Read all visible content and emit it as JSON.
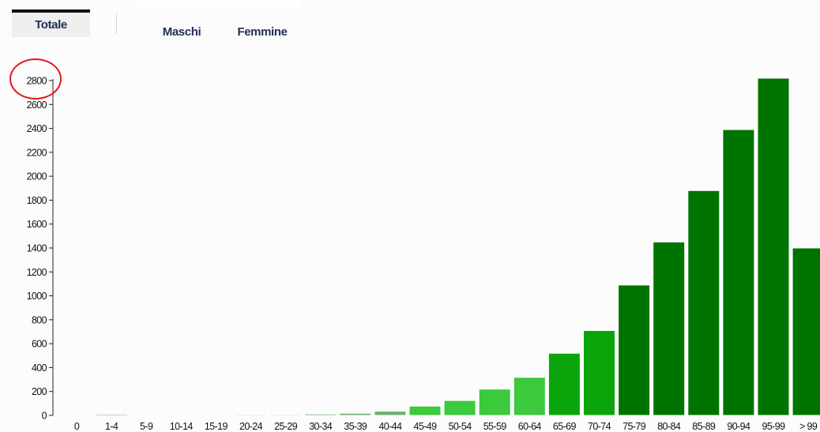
{
  "tabs": {
    "totale": "Totale",
    "maschi": "Maschi",
    "femmine": "Femmine"
  },
  "colors": {
    "light_green": "#3cc93c",
    "mid_green": "#0aa50a",
    "dark_green": "#007400",
    "tiny_bar": "#6fae6f",
    "annotation": "#e0191e"
  },
  "chart_data": {
    "type": "bar",
    "categories": [
      "0",
      "1-4",
      "5-9",
      "10-14",
      "15-19",
      "20-24",
      "25-29",
      "30-34",
      "35-39",
      "40-44",
      "45-49",
      "50-54",
      "55-59",
      "60-64",
      "65-69",
      "70-74",
      "75-79",
      "80-84",
      "85-89",
      "90-94",
      "95-99",
      "> 99"
    ],
    "values": [
      0,
      10,
      5,
      5,
      5,
      8,
      8,
      12,
      18,
      35,
      78,
      125,
      220,
      318,
      520,
      710,
      1090,
      1450,
      1880,
      2390,
      2820,
      1400
    ],
    "yticks": [
      "0",
      "200",
      "400",
      "600",
      "800",
      "1000",
      "1200",
      "1400",
      "1600",
      "1800",
      "2000",
      "2200",
      "2400",
      "2600",
      "2800"
    ],
    "ylim": [
      0,
      2800
    ],
    "title": "",
    "xlabel": "",
    "ylabel": "",
    "grid": false
  }
}
